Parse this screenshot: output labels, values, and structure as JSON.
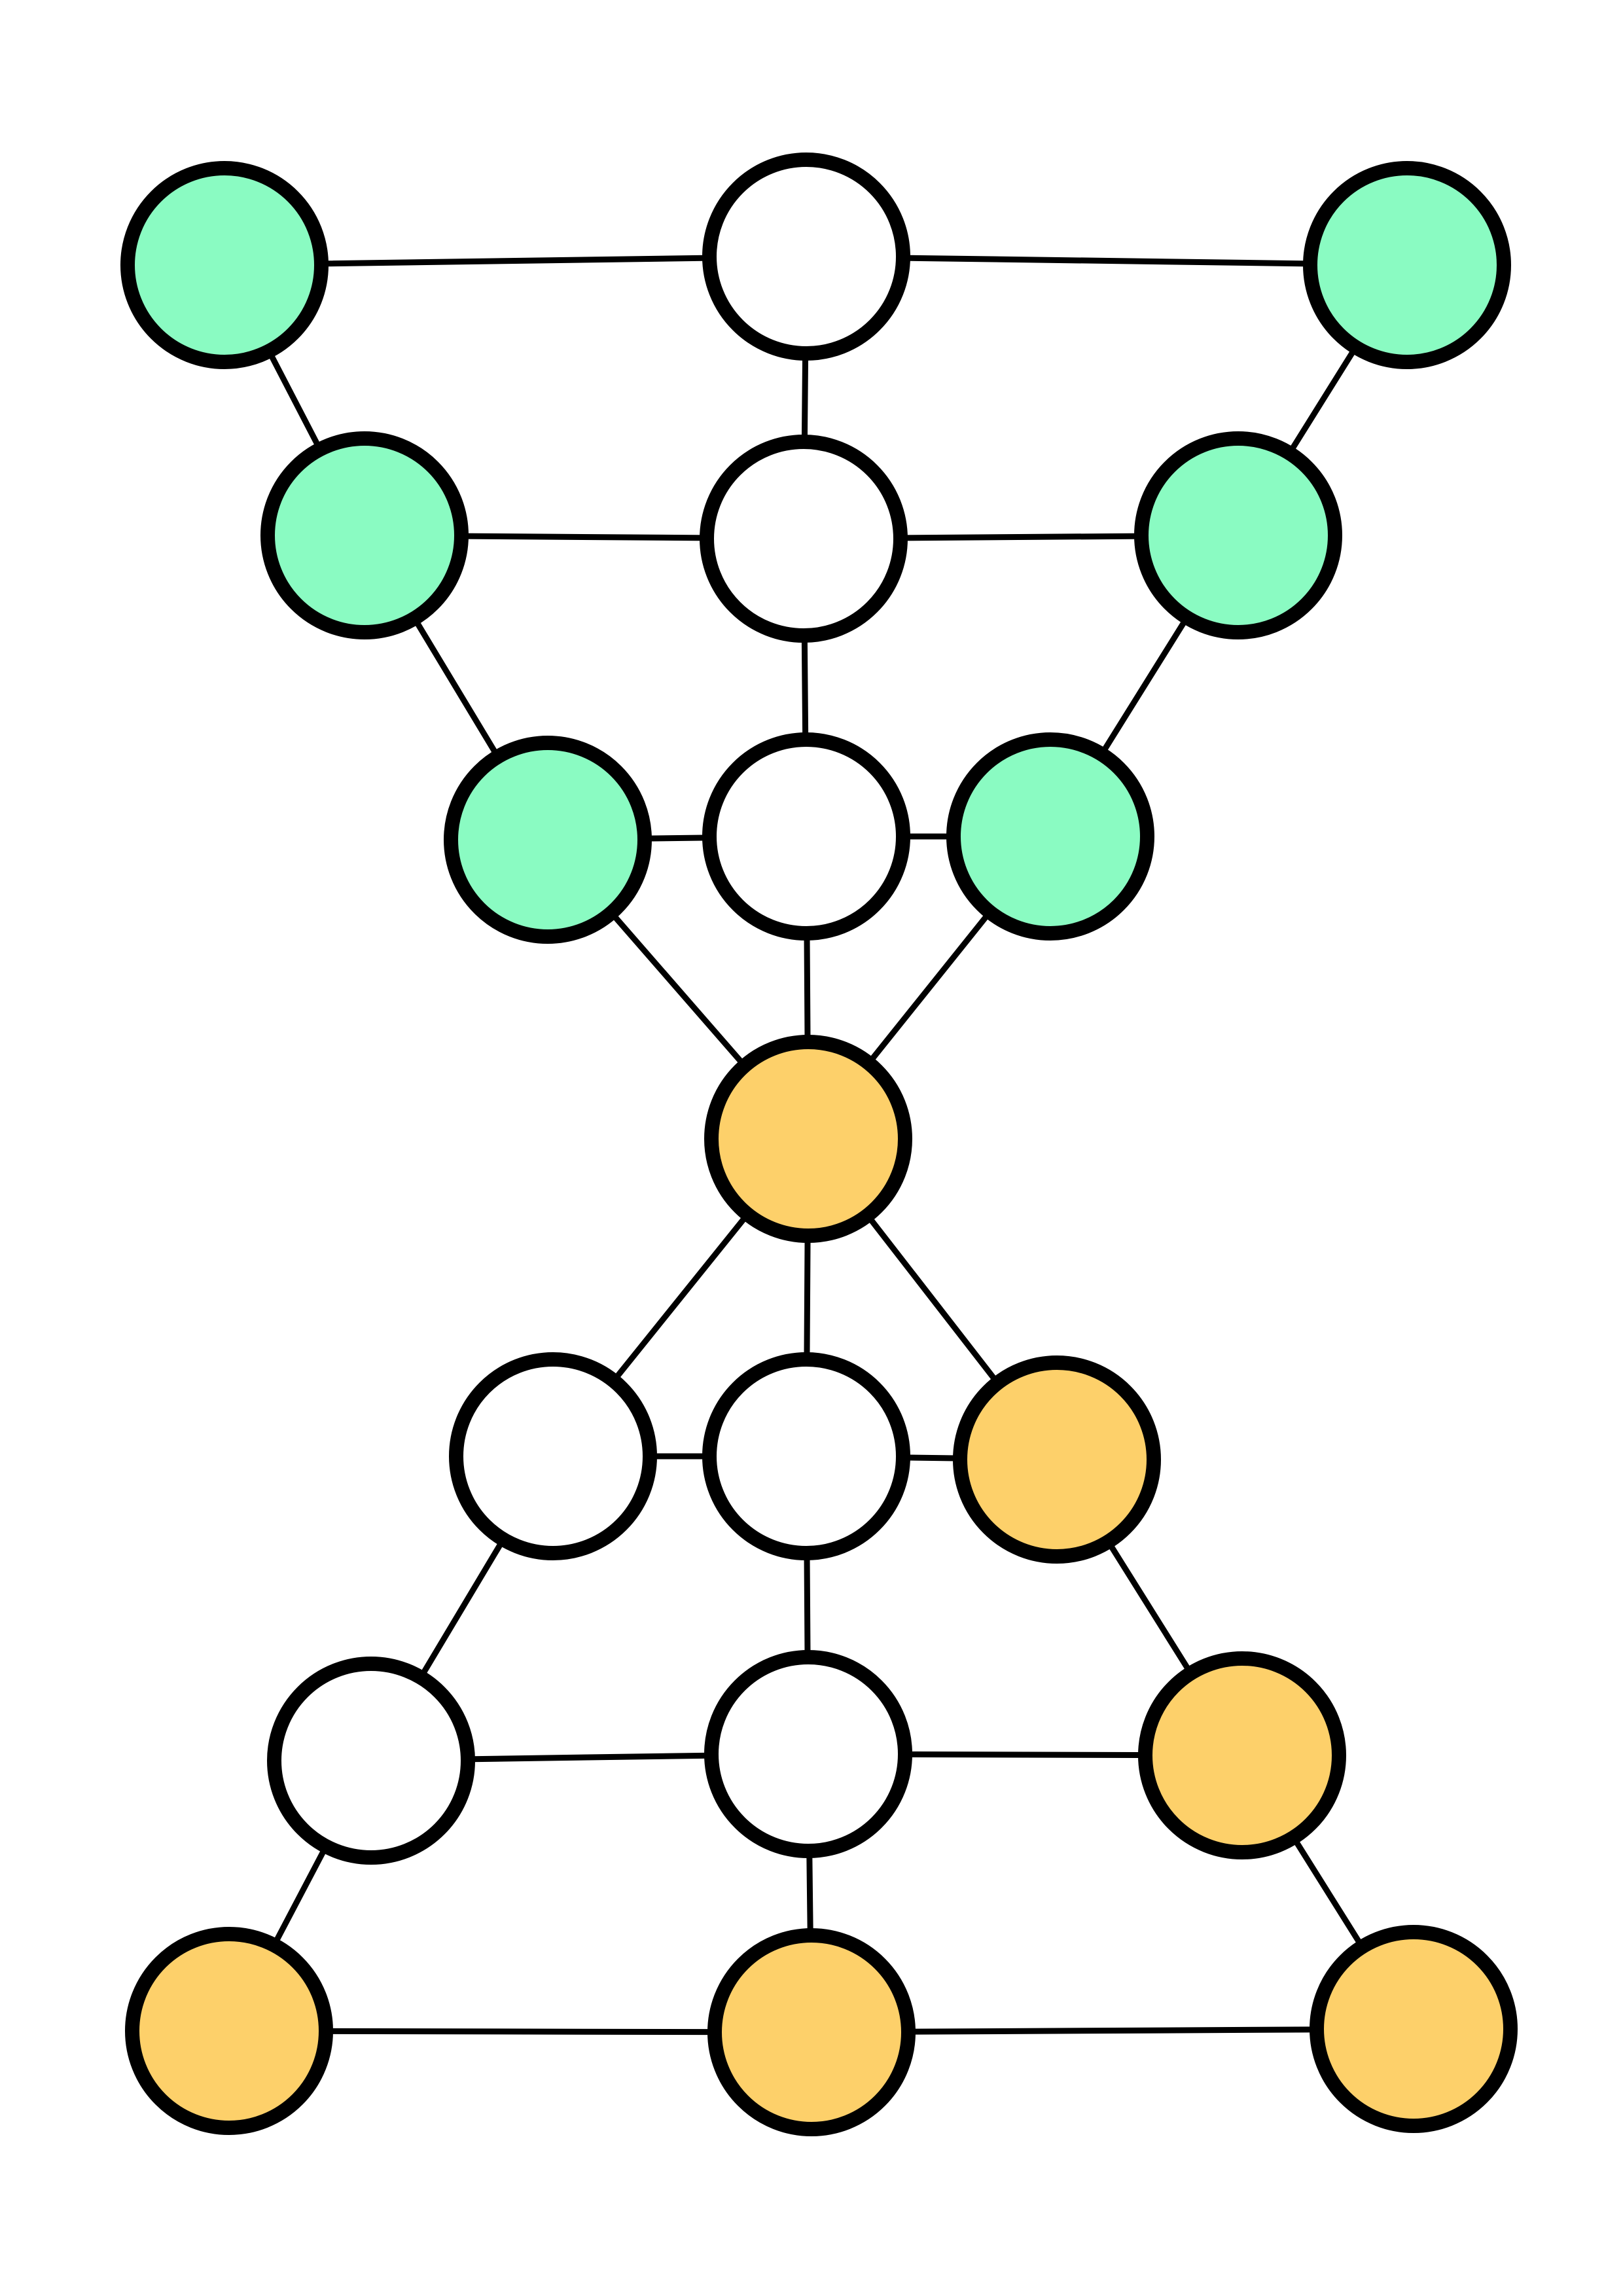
{
  "palette": {
    "green": "#8AFBC2",
    "yellow": "#FDD06A",
    "empty": "#FFFFFF",
    "line": "#000000"
  },
  "nodes": [
    {
      "id": "n1",
      "color": "green"
    },
    {
      "id": "n2",
      "color": "empty"
    },
    {
      "id": "n3",
      "color": "green"
    },
    {
      "id": "n4",
      "color": "green"
    },
    {
      "id": "n5",
      "color": "empty"
    },
    {
      "id": "n6",
      "color": "green"
    },
    {
      "id": "n7",
      "color": "green"
    },
    {
      "id": "n8",
      "color": "empty"
    },
    {
      "id": "n9",
      "color": "green"
    },
    {
      "id": "n10",
      "color": "yellow"
    },
    {
      "id": "n11",
      "color": "empty"
    },
    {
      "id": "n12",
      "color": "empty"
    },
    {
      "id": "n13",
      "color": "yellow"
    },
    {
      "id": "n14",
      "color": "empty"
    },
    {
      "id": "n15",
      "color": "empty"
    },
    {
      "id": "n16",
      "color": "yellow"
    },
    {
      "id": "n17",
      "color": "yellow"
    },
    {
      "id": "n18",
      "color": "yellow"
    },
    {
      "id": "n19",
      "color": "yellow"
    }
  ],
  "edges": [
    [
      "n1",
      "n2"
    ],
    [
      "n2",
      "n3"
    ],
    [
      "n1",
      "n4"
    ],
    [
      "n3",
      "n6"
    ],
    [
      "n2",
      "n5"
    ],
    [
      "n4",
      "n5"
    ],
    [
      "n5",
      "n6"
    ],
    [
      "n4",
      "n7"
    ],
    [
      "n6",
      "n9"
    ],
    [
      "n5",
      "n8"
    ],
    [
      "n7",
      "n8"
    ],
    [
      "n8",
      "n9"
    ],
    [
      "n7",
      "n10"
    ],
    [
      "n8",
      "n10"
    ],
    [
      "n9",
      "n10"
    ],
    [
      "n10",
      "n11"
    ],
    [
      "n10",
      "n12"
    ],
    [
      "n10",
      "n13"
    ],
    [
      "n11",
      "n12"
    ],
    [
      "n12",
      "n13"
    ],
    [
      "n11",
      "n14"
    ],
    [
      "n12",
      "n15"
    ],
    [
      "n13",
      "n16"
    ],
    [
      "n14",
      "n15"
    ],
    [
      "n15",
      "n16"
    ],
    [
      "n14",
      "n17"
    ],
    [
      "n15",
      "n18"
    ],
    [
      "n16",
      "n19"
    ],
    [
      "n17",
      "n18"
    ],
    [
      "n18",
      "n19"
    ]
  ]
}
